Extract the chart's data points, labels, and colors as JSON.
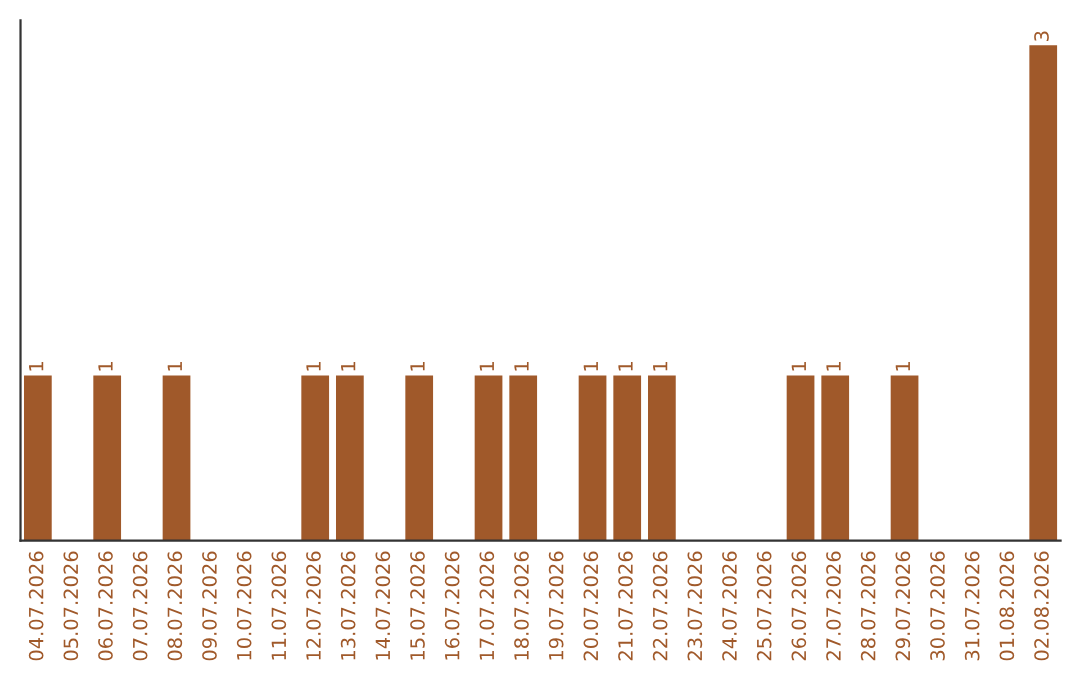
{
  "chart_data": {
    "type": "bar",
    "categories": [
      "04.07.2026",
      "05.07.2026",
      "06.07.2026",
      "07.07.2026",
      "08.07.2026",
      "09.07.2026",
      "10.07.2026",
      "11.07.2026",
      "12.07.2026",
      "13.07.2026",
      "14.07.2026",
      "15.07.2026",
      "16.07.2026",
      "17.07.2026",
      "18.07.2026",
      "19.07.2026",
      "20.07.2026",
      "21.07.2026",
      "22.07.2026",
      "23.07.2026",
      "24.07.2026",
      "25.07.2026",
      "26.07.2026",
      "27.07.2026",
      "28.07.2026",
      "29.07.2026",
      "30.07.2026",
      "31.07.2026",
      "01.08.2026",
      "02.08.2026"
    ],
    "values": [
      1,
      0,
      1,
      0,
      1,
      0,
      0,
      0,
      1,
      1,
      0,
      1,
      0,
      1,
      1,
      0,
      1,
      1,
      1,
      0,
      0,
      0,
      1,
      1,
      0,
      1,
      0,
      0,
      0,
      3
    ],
    "value_labels": [
      "1",
      null,
      "1",
      null,
      "1",
      null,
      null,
      null,
      "1",
      "1",
      null,
      "1",
      null,
      "1",
      "1",
      null,
      "1",
      "1",
      "1",
      null,
      null,
      null,
      "1",
      "1",
      null,
      "1",
      null,
      null,
      null,
      "3"
    ],
    "color": "#a0592a",
    "tick_labels": "x",
    "grid": false,
    "legend": false
  }
}
